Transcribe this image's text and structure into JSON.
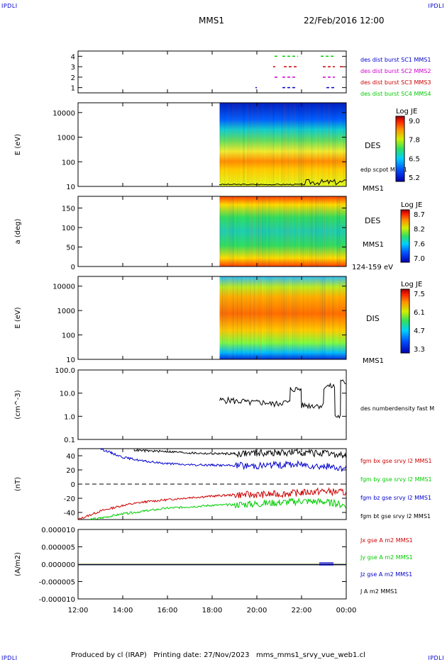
{
  "corners": {
    "tl": "IPDLI",
    "tr": "IPDLI",
    "bl": "IPDLI",
    "br": "IPDLI"
  },
  "header": {
    "spacecraft": "MMS1",
    "datetime": "22/Feb/2016 12:00"
  },
  "footer": "Produced by cl (IRAP)   Printing date: 27/Nov/2023   mms_mms1_srvy_vue_web1.cl",
  "colors": {
    "c1": "#0000cc",
    "c2": "#cc00cc",
    "c3": "#cc0000",
    "c4": "#00cc00"
  },
  "chart_data": [
    {
      "type": "scatter",
      "id": "burst",
      "ylim": [
        0.5,
        4.5
      ],
      "yticks": [
        "1",
        "2",
        "3",
        "4"
      ],
      "legend": [
        {
          "label": "des dist burst SC1 MMS1",
          "color": "#0000cc",
          "row": 1
        },
        {
          "label": "des dist burst SC2 MMS2",
          "color": "#cc00cc",
          "row": 2
        },
        {
          "label": "des dist burst SC3 MMS3",
          "color": "#cc0000",
          "row": 3
        },
        {
          "label": "des dist burst SC4 MMS4",
          "color": "#00cc00",
          "row": 4
        }
      ]
    },
    {
      "type": "heatmap",
      "id": "des-energy",
      "ylabel": "E (eV)",
      "yscale": "log",
      "ylim": [
        10,
        25000
      ],
      "yticks": [
        "10",
        "100",
        "1000",
        "10000"
      ],
      "right_labels": [
        "DES",
        "edp scpot MMS1",
        "MMS1"
      ],
      "colorbar": {
        "title": "Log JE",
        "ticks": [
          "9.0",
          "7.8",
          "6.5",
          "5.2"
        ]
      },
      "data_start": "18:20",
      "data_end": "00:00"
    },
    {
      "type": "heatmap",
      "id": "des-pitch",
      "ylabel": "a (deg)",
      "ylim": [
        0,
        180
      ],
      "yticks": [
        "0",
        "50",
        "100",
        "150"
      ],
      "right_labels": [
        "DES",
        "MMS1",
        "124-159 eV"
      ],
      "colorbar": {
        "title": "Log JE",
        "ticks": [
          "8.7",
          "8.2",
          "7.6",
          "7.0"
        ]
      },
      "data_start": "18:20",
      "data_end": "00:00"
    },
    {
      "type": "heatmap",
      "id": "dis-energy",
      "ylabel": "E (eV)",
      "yscale": "log",
      "ylim": [
        10,
        25000
      ],
      "yticks": [
        "10",
        "100",
        "1000",
        "10000"
      ],
      "right_labels": [
        "DIS",
        "MMS1"
      ],
      "colorbar": {
        "title": "Log JE",
        "ticks": [
          "7.5",
          "6.1",
          "4.7",
          "3.3"
        ]
      },
      "data_start": "18:20",
      "data_end": "00:00"
    },
    {
      "type": "line",
      "id": "density",
      "ylabel": "(cm^-3)",
      "yscale": "log",
      "ylim": [
        0.1,
        100
      ],
      "yticks": [
        "0.1",
        "1.0",
        "10.0",
        "100.0"
      ],
      "series": [
        {
          "name": "des numberdensity fast M",
          "color": "#000000"
        }
      ],
      "x": [
        "18:20",
        "19:00",
        "19:30",
        "20:00",
        "20:30",
        "21:00",
        "21:30",
        "22:00",
        "22:30",
        "23:00",
        "23:30",
        "23:45"
      ],
      "values": [
        5,
        4.5,
        4,
        4,
        3.5,
        4,
        15,
        3,
        3,
        20,
        1,
        30
      ]
    },
    {
      "type": "line",
      "id": "bfield",
      "ylabel": "(nT)",
      "ylim": [
        -50,
        50
      ],
      "yticks": [
        "-40",
        "-20",
        "0",
        "20",
        "40"
      ],
      "series": [
        {
          "name": "fgm bx gse srvy l2 MMS1",
          "color": "#cc0000",
          "x": [
            "12:00",
            "13:00",
            "14:00",
            "15:00",
            "16:00",
            "17:00",
            "18:00",
            "19:00",
            "20:00",
            "21:00",
            "22:00",
            "23:00",
            "00:00"
          ],
          "values": [
            -50,
            -38,
            -30,
            -25,
            -22,
            -19,
            -17,
            -15,
            -15,
            -14,
            -12,
            -10,
            -12
          ]
        },
        {
          "name": "fgm by gse srvy l2 MMS1",
          "color": "#00cc00",
          "x": [
            "12:30",
            "13:00",
            "14:00",
            "15:00",
            "16:00",
            "17:00",
            "18:00",
            "19:00",
            "20:00",
            "21:00",
            "22:00",
            "23:00",
            "00:00"
          ],
          "values": [
            -50,
            -48,
            -42,
            -38,
            -34,
            -32,
            -30,
            -29,
            -28,
            -26,
            -24,
            -25,
            -30
          ]
        },
        {
          "name": "fgm bz gse srvy l2 MMS1",
          "color": "#0000cc",
          "x": [
            "13:00",
            "13:30",
            "14:00",
            "15:00",
            "16:00",
            "17:00",
            "18:00",
            "19:00",
            "20:00",
            "21:00",
            "22:00",
            "23:00",
            "00:00"
          ],
          "values": [
            50,
            44,
            38,
            32,
            29,
            27,
            27,
            26,
            26,
            27,
            28,
            25,
            22
          ]
        },
        {
          "name": "fgm bt gse srvy l2 MMS1",
          "color": "#000000",
          "x": [
            "14:30",
            "15:00",
            "16:00",
            "17:00",
            "18:00",
            "19:00",
            "20:00",
            "21:00",
            "22:00",
            "23:00",
            "00:00"
          ],
          "values": [
            48,
            47,
            46,
            44,
            43,
            43,
            44,
            44,
            45,
            43,
            40
          ]
        }
      ]
    },
    {
      "type": "line",
      "id": "current",
      "ylabel": "(A/m2)",
      "ylim": [
        -1e-05,
        1e-05
      ],
      "yticks": [
        "-0.000010",
        "-0.000005",
        "0.000000",
        "0.000005",
        "0.000010"
      ],
      "series": [
        {
          "name": "Jx gse A m2 MMS1",
          "color": "#cc0000"
        },
        {
          "name": "Jy gse A m2 MMS1",
          "color": "#00cc00"
        },
        {
          "name": "Jz gse A m2 MMS1",
          "color": "#0000cc"
        },
        {
          "name": "J A m2 MMS1",
          "color": "#000000"
        }
      ],
      "values": [
        0,
        0,
        0,
        0
      ]
    }
  ],
  "xaxis": {
    "ticks": [
      "12:00",
      "14:00",
      "16:00",
      "18:00",
      "20:00",
      "22:00",
      "00:00"
    ]
  }
}
